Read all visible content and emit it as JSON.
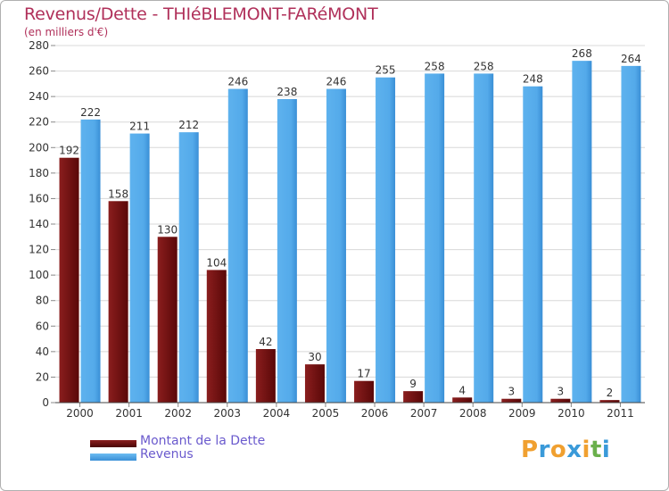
{
  "title": "Revenus/Dette - THIéBLEMONT-FARéMONT",
  "subtitle": "(en milliers d'€)",
  "brand": {
    "letters": [
      "P",
      "r",
      "o",
      "x",
      "i",
      "t",
      "i"
    ],
    "colors": [
      "#f0a030",
      "#3a9ad9",
      "#f0a030",
      "#3a9ad9",
      "#f0a030",
      "#6ab04c",
      "#3a9ad9"
    ]
  },
  "legend": [
    {
      "label": "Montant de la Dette",
      "color": "#6b0e0e"
    },
    {
      "label": "Revenus",
      "color": "#4aa3e6"
    }
  ],
  "chart_data": {
    "type": "bar",
    "title": "Revenus/Dette - THIéBLEMONT-FARéMONT",
    "ylabel": "(en milliers d'€)",
    "xlabel": "",
    "categories": [
      "2000",
      "2001",
      "2002",
      "2003",
      "2004",
      "2005",
      "2006",
      "2007",
      "2008",
      "2009",
      "2010",
      "2011"
    ],
    "ylim": [
      0,
      280
    ],
    "yticks": [
      0,
      20,
      40,
      60,
      80,
      100,
      120,
      140,
      160,
      180,
      200,
      220,
      240,
      260,
      280
    ],
    "grid": true,
    "series": [
      {
        "name": "Montant de la Dette",
        "color_top": "#a33a3a",
        "color_bottom": "#5a0808",
        "values": [
          192,
          158,
          130,
          104,
          42,
          30,
          17,
          9,
          4,
          3,
          3,
          2
        ]
      },
      {
        "name": "Revenus",
        "color_top": "#5eb2ee",
        "color_bottom": "#3f96dc",
        "values": [
          222,
          211,
          212,
          246,
          238,
          246,
          255,
          258,
          258,
          248,
          268,
          264
        ]
      }
    ]
  }
}
